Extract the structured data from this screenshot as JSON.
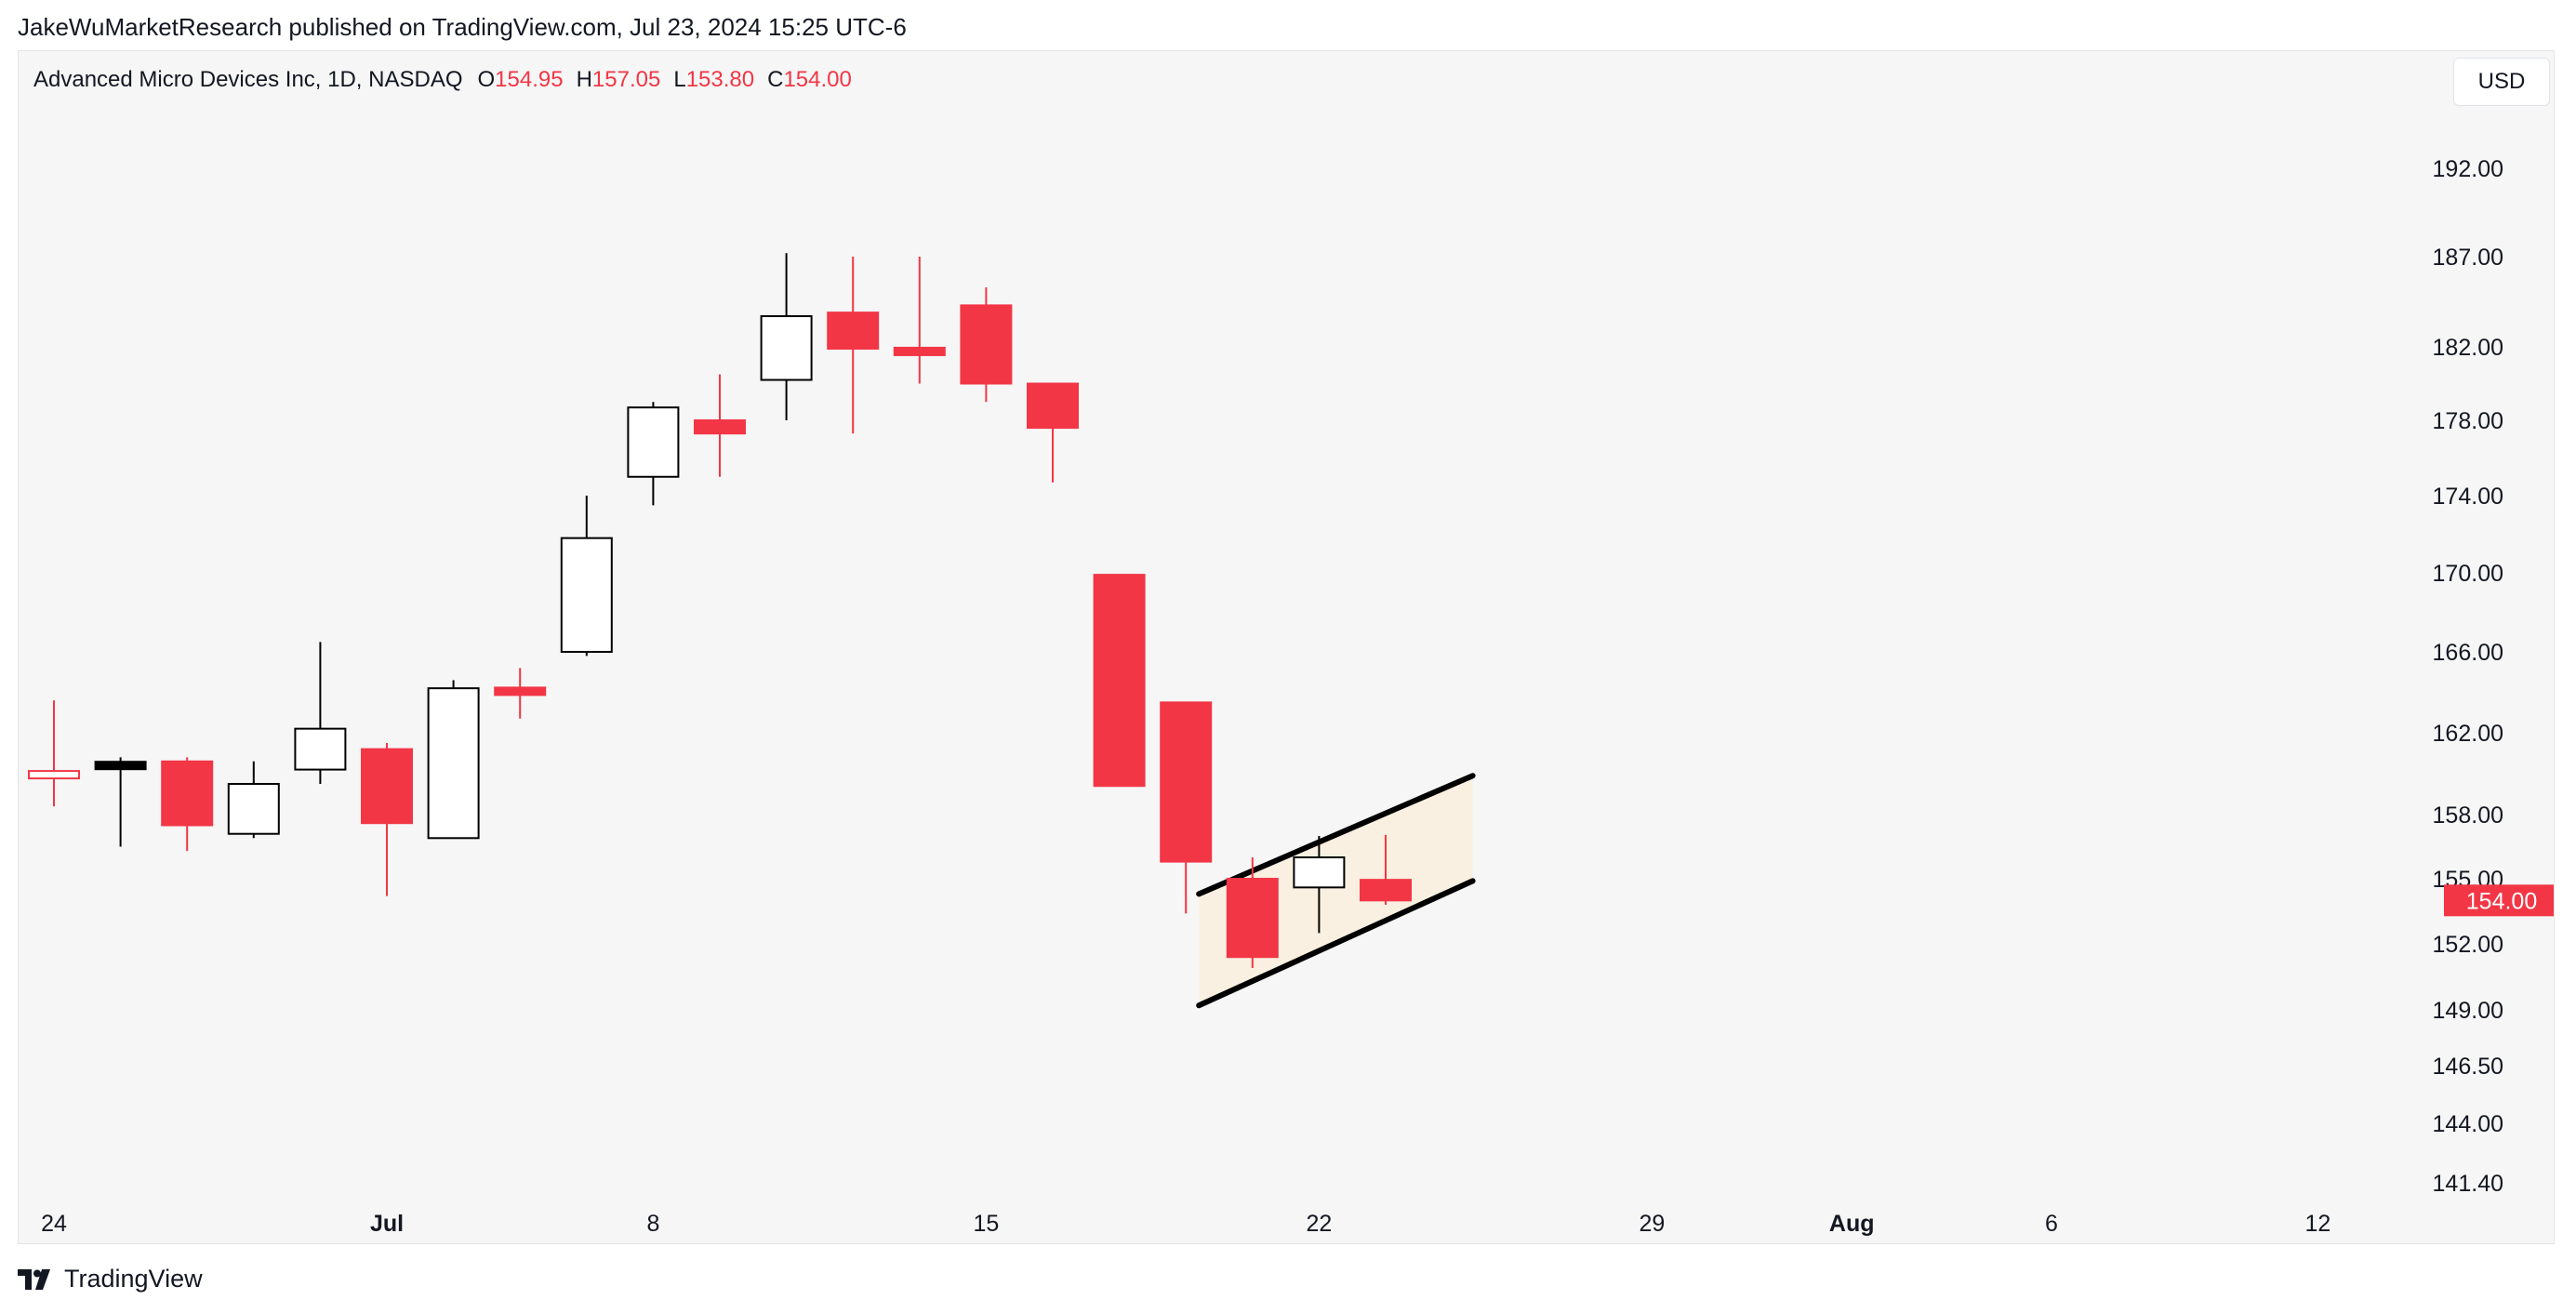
{
  "header": {
    "published_by": "JakeWuMarketResearch published on TradingView.com, Jul 23, 2024 15:25 UTC-6"
  },
  "legend": {
    "symbol": "Advanced Micro Devices Inc, 1D, NASDAQ",
    "open_label": "O",
    "open": "154.95",
    "high_label": "H",
    "high": "157.05",
    "low_label": "L",
    "low": "153.80",
    "close_label": "C",
    "close": "154.00"
  },
  "currency_button": "USD",
  "footer": {
    "brand": "TradingView"
  },
  "colors": {
    "down": "#f23645",
    "up_body": "#ffffff",
    "up_border": "#000000",
    "channel_fill": "#faf0e1",
    "channel_line": "#000000",
    "background": "#f6f6f6"
  },
  "chart_data": {
    "type": "candlestick",
    "symbol": "AMD",
    "interval": "1D",
    "currency": "USD",
    "last_price_label": "154.00",
    "x_labels": [
      {
        "text": "24",
        "day": 0,
        "bold": false
      },
      {
        "text": "Jul",
        "day": 5,
        "bold": true
      },
      {
        "text": "8",
        "day": 9,
        "bold": false
      },
      {
        "text": "15",
        "day": 14,
        "bold": false
      },
      {
        "text": "22",
        "day": 19,
        "bold": false
      },
      {
        "text": "29",
        "day": 24,
        "bold": false
      },
      {
        "text": "Aug",
        "day": 27,
        "bold": true
      },
      {
        "text": "6",
        "day": 30,
        "bold": false
      },
      {
        "text": "12",
        "day": 34,
        "bold": false
      }
    ],
    "y_ticks": [
      {
        "label": "192.00",
        "value": 192.0
      },
      {
        "label": "187.00",
        "value": 187.0
      },
      {
        "label": "182.00",
        "value": 182.0
      },
      {
        "label": "178.00",
        "value": 178.0
      },
      {
        "label": "174.00",
        "value": 174.0
      },
      {
        "label": "170.00",
        "value": 170.0
      },
      {
        "label": "166.00",
        "value": 166.0
      },
      {
        "label": "162.00",
        "value": 162.0
      },
      {
        "label": "158.00",
        "value": 158.0
      },
      {
        "label": "155.00",
        "value": 155.0
      },
      {
        "label": "152.00",
        "value": 152.0
      },
      {
        "label": "149.00",
        "value": 149.0
      },
      {
        "label": "146.50",
        "value": 146.5
      },
      {
        "label": "144.00",
        "value": 144.0
      },
      {
        "label": "141.40",
        "value": 141.4
      }
    ],
    "candles": [
      {
        "day": 0,
        "o": 160.1,
        "h": 163.6,
        "l": 158.4,
        "c": 159.8,
        "color": "red-hollow"
      },
      {
        "day": 1,
        "o": 160.5,
        "h": 160.8,
        "l": 156.5,
        "c": 160.3,
        "color": "black-flat"
      },
      {
        "day": 2,
        "o": 160.6,
        "h": 160.8,
        "l": 156.3,
        "c": 157.5,
        "color": "down"
      },
      {
        "day": 3,
        "o": 157.1,
        "h": 160.6,
        "l": 156.9,
        "c": 159.5,
        "color": "up"
      },
      {
        "day": 4,
        "o": 160.2,
        "h": 166.5,
        "l": 159.5,
        "c": 162.2,
        "color": "up"
      },
      {
        "day": 5,
        "o": 161.2,
        "h": 161.5,
        "l": 154.2,
        "c": 157.6,
        "color": "down"
      },
      {
        "day": 6,
        "o": 156.9,
        "h": 164.6,
        "l": 156.9,
        "c": 164.2,
        "color": "up"
      },
      {
        "day": 7,
        "o": 164.2,
        "h": 165.2,
        "l": 162.7,
        "c": 163.9,
        "color": "down"
      },
      {
        "day": 8,
        "o": 166.0,
        "h": 174.0,
        "l": 165.8,
        "c": 171.8,
        "color": "up"
      },
      {
        "day": 9,
        "o": 175.0,
        "h": 179.0,
        "l": 173.5,
        "c": 178.7,
        "color": "up"
      },
      {
        "day": 10,
        "o": 178.0,
        "h": 180.5,
        "l": 175.0,
        "c": 177.3,
        "color": "down"
      },
      {
        "day": 11,
        "o": 180.2,
        "h": 187.2,
        "l": 178.0,
        "c": 183.7,
        "color": "up"
      },
      {
        "day": 12,
        "o": 183.9,
        "h": 187.0,
        "l": 177.3,
        "c": 181.9,
        "color": "down"
      },
      {
        "day": 13,
        "o": 181.9,
        "h": 187.0,
        "l": 180.0,
        "c": 181.6,
        "color": "down"
      },
      {
        "day": 14,
        "o": 184.3,
        "h": 185.3,
        "l": 179.0,
        "c": 180.0,
        "color": "down"
      },
      {
        "day": 15,
        "o": 180.0,
        "h": 180.0,
        "l": 174.7,
        "c": 177.6,
        "color": "down"
      },
      {
        "day": 16,
        "o": 169.9,
        "h": 169.9,
        "l": 159.4,
        "c": 159.4,
        "color": "down"
      },
      {
        "day": 17,
        "o": 163.5,
        "h": 163.5,
        "l": 153.4,
        "c": 155.8,
        "color": "down"
      },
      {
        "day": 18,
        "o": 155.0,
        "h": 156.0,
        "l": 150.9,
        "c": 151.4,
        "color": "down"
      },
      {
        "day": 19,
        "o": 154.6,
        "h": 157.0,
        "l": 152.5,
        "c": 156.0,
        "color": "up"
      },
      {
        "day": 20,
        "o": 154.95,
        "h": 157.05,
        "l": 153.8,
        "c": 154.0,
        "color": "down"
      }
    ],
    "channel": {
      "start_day": 17.0,
      "end_day": 21.0,
      "upper": [
        154.3,
        159.9
      ],
      "lower": [
        149.2,
        154.9
      ]
    }
  }
}
